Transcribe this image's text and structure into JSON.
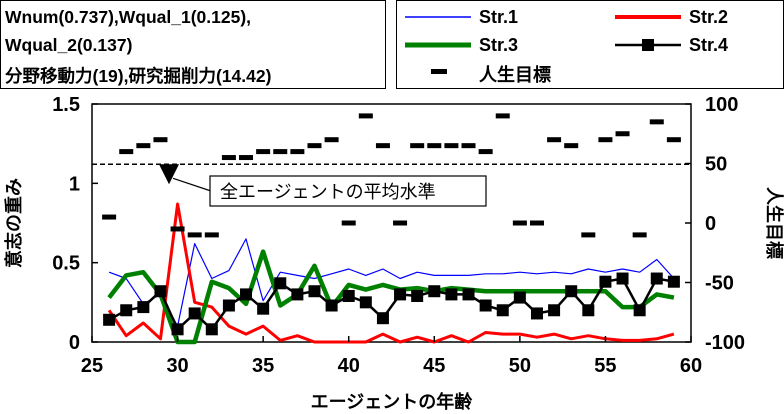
{
  "info": {
    "line1": "Wnum(0.737),Wqual_1(0.125),",
    "line2": "Wqual_2(0.137)",
    "line3": "分野移動力(19),研究掘削力(14.42)"
  },
  "legend": [
    {
      "label": "Str.1",
      "color": "#0000ff",
      "style": "thin-line"
    },
    {
      "label": "Str.2",
      "color": "#ff0000",
      "style": "line"
    },
    {
      "label": "Str.3",
      "color": "#008000",
      "style": "thick-line"
    },
    {
      "label": "Str.4",
      "color": "#000000",
      "style": "line-square"
    },
    {
      "label": "人生目標",
      "color": "#000000",
      "style": "dash"
    }
  ],
  "chart_data": {
    "type": "line",
    "xlabel": "エージェントの年齢",
    "ylabel_left": "意志の重み",
    "ylabel_right": "人生目標",
    "x_ticks": [
      25,
      30,
      35,
      40,
      45,
      50,
      55,
      60
    ],
    "y_left_ticks": [
      "0",
      "0.5",
      "1",
      "1.5"
    ],
    "y_right_ticks": [
      "-100",
      "-50",
      "0",
      "50",
      "100"
    ],
    "xlim": [
      25,
      60
    ],
    "ylim_left": [
      0,
      1.5
    ],
    "ylim_right": [
      -100,
      100
    ],
    "reference_line": {
      "value": 1.12,
      "axis": "left",
      "style": "dashed"
    },
    "annotation": {
      "text": "全エージェントの平均水準",
      "x": 29.5,
      "y": 1.12
    },
    "x": [
      26,
      27,
      28,
      29,
      30,
      31,
      32,
      33,
      34,
      35,
      36,
      37,
      38,
      39,
      40,
      41,
      42,
      43,
      44,
      45,
      46,
      47,
      48,
      49,
      50,
      51,
      52,
      53,
      54,
      55,
      56,
      57,
      58,
      59
    ],
    "series": [
      {
        "name": "Str.1",
        "axis": "left",
        "color": "#0000ff",
        "values": [
          0.44,
          0.4,
          0.24,
          0.3,
          0.1,
          0.62,
          0.4,
          0.45,
          0.65,
          0.26,
          0.44,
          0.42,
          0.4,
          0.43,
          0.46,
          0.42,
          0.46,
          0.4,
          0.44,
          0.42,
          0.42,
          0.42,
          0.43,
          0.43,
          0.44,
          0.43,
          0.44,
          0.43,
          0.46,
          0.44,
          0.46,
          0.44,
          0.52,
          0.4
        ]
      },
      {
        "name": "Str.2",
        "axis": "left",
        "color": "#ff0000",
        "values": [
          0.2,
          0.04,
          0.12,
          0.02,
          0.87,
          0.25,
          0.22,
          0.1,
          0.05,
          0.1,
          0.01,
          0.04,
          0.0,
          0.0,
          0.0,
          0.0,
          0.05,
          0.0,
          0.03,
          0.0,
          0.04,
          0.0,
          0.06,
          0.05,
          0.05,
          0.03,
          0.05,
          0.02,
          0.04,
          0.02,
          0.01,
          0.01,
          0.02,
          0.05
        ]
      },
      {
        "name": "Str.3",
        "axis": "left",
        "color": "#008000",
        "values": [
          0.28,
          0.42,
          0.44,
          0.3,
          0.0,
          0.0,
          0.38,
          0.34,
          0.24,
          0.57,
          0.23,
          0.3,
          0.48,
          0.22,
          0.36,
          0.33,
          0.36,
          0.33,
          0.34,
          0.32,
          0.34,
          0.33,
          0.32,
          0.32,
          0.32,
          0.32,
          0.32,
          0.32,
          0.32,
          0.32,
          0.22,
          0.22,
          0.3,
          0.28
        ]
      },
      {
        "name": "Str.4",
        "axis": "left",
        "color": "#000000",
        "values": [
          0.14,
          0.2,
          0.22,
          0.32,
          0.08,
          0.18,
          0.08,
          0.23,
          0.3,
          0.21,
          0.37,
          0.3,
          0.32,
          0.23,
          0.29,
          0.25,
          0.15,
          0.3,
          0.29,
          0.32,
          0.3,
          0.3,
          0.23,
          0.2,
          0.28,
          0.18,
          0.2,
          0.32,
          0.2,
          0.38,
          0.4,
          0.2,
          0.4,
          0.38
        ]
      },
      {
        "name": "人生目標",
        "axis": "right",
        "style": "dash",
        "color": "#000000",
        "values": [
          5,
          60,
          65,
          70,
          -5,
          -10,
          -10,
          55,
          55,
          60,
          60,
          60,
          65,
          70,
          0,
          90,
          65,
          0,
          65,
          65,
          65,
          65,
          60,
          90,
          0,
          0,
          70,
          65,
          -10,
          70,
          75,
          -10,
          85,
          70
        ]
      }
    ]
  }
}
